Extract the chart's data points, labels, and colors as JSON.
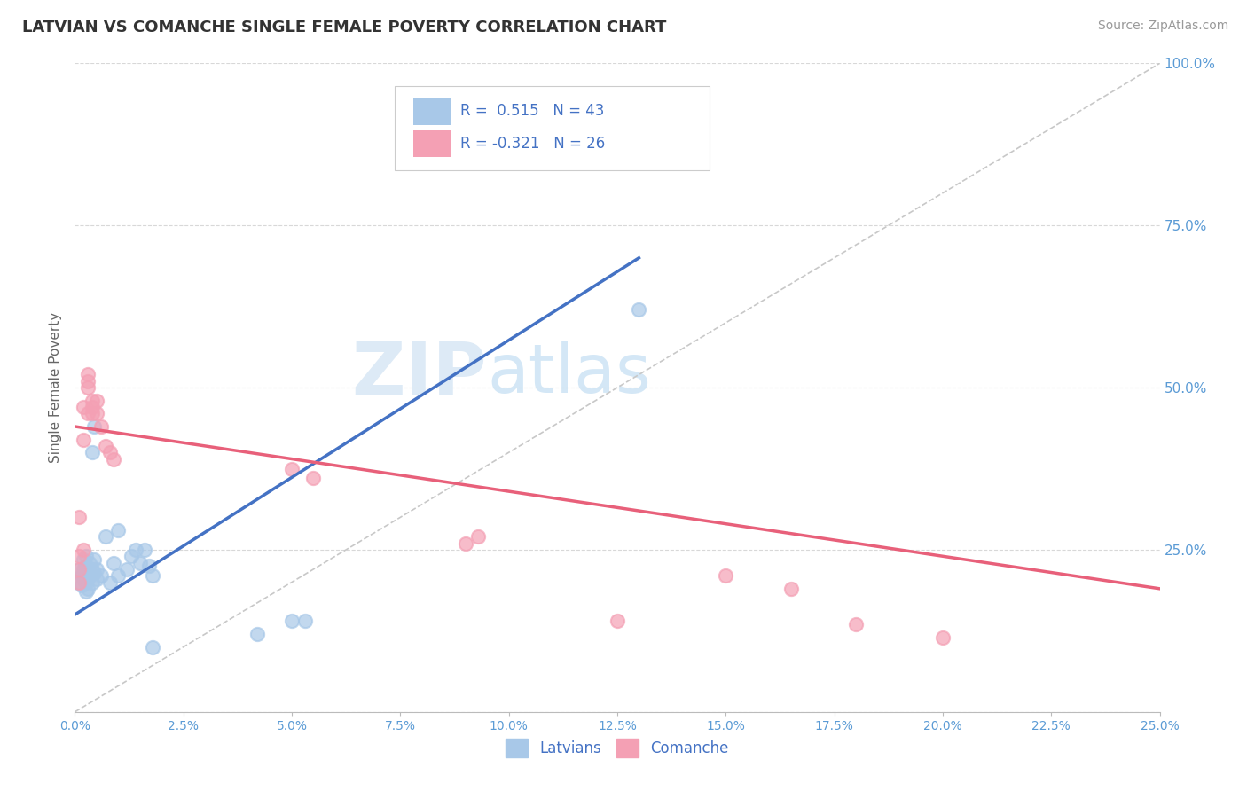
{
  "title": "LATVIAN VS COMANCHE SINGLE FEMALE POVERTY CORRELATION CHART",
  "source": "Source: ZipAtlas.com",
  "ylabel": "Single Female Poverty",
  "latvian_color": "#a8c8e8",
  "comanche_color": "#f4a0b4",
  "blue_line_color": "#4472c4",
  "pink_line_color": "#e8607a",
  "ref_line_color": "#c8c8c8",
  "watermark_zip": "ZIP",
  "watermark_atlas": "atlas",
  "background_color": "#ffffff",
  "grid_color": "#d8d8d8",
  "latvian_dots": [
    [
      0.1,
      20.0
    ],
    [
      0.1,
      22.0
    ],
    [
      0.15,
      19.5
    ],
    [
      0.15,
      21.0
    ],
    [
      0.2,
      20.5
    ],
    [
      0.2,
      22.0
    ],
    [
      0.2,
      23.5
    ],
    [
      0.25,
      18.5
    ],
    [
      0.25,
      20.0
    ],
    [
      0.25,
      21.0
    ],
    [
      0.25,
      22.5
    ],
    [
      0.25,
      24.0
    ],
    [
      0.3,
      19.0
    ],
    [
      0.3,
      20.5
    ],
    [
      0.3,
      22.0
    ],
    [
      0.35,
      21.5
    ],
    [
      0.35,
      23.0
    ],
    [
      0.4,
      20.0
    ],
    [
      0.4,
      22.0
    ],
    [
      0.4,
      40.0
    ],
    [
      0.45,
      21.5
    ],
    [
      0.45,
      23.5
    ],
    [
      0.45,
      44.0
    ],
    [
      0.5,
      20.5
    ],
    [
      0.5,
      22.0
    ],
    [
      0.6,
      21.0
    ],
    [
      0.7,
      27.0
    ],
    [
      0.8,
      20.0
    ],
    [
      0.9,
      23.0
    ],
    [
      1.0,
      21.0
    ],
    [
      1.0,
      28.0
    ],
    [
      1.2,
      22.0
    ],
    [
      1.3,
      24.0
    ],
    [
      1.4,
      25.0
    ],
    [
      1.5,
      23.0
    ],
    [
      1.6,
      25.0
    ],
    [
      1.7,
      22.5
    ],
    [
      1.8,
      21.0
    ],
    [
      1.8,
      10.0
    ],
    [
      4.2,
      12.0
    ],
    [
      5.0,
      14.0
    ],
    [
      5.3,
      14.0
    ],
    [
      13.0,
      62.0
    ]
  ],
  "comanche_dots": [
    [
      0.1,
      20.0
    ],
    [
      0.1,
      22.0
    ],
    [
      0.1,
      24.0
    ],
    [
      0.1,
      30.0
    ],
    [
      0.2,
      25.0
    ],
    [
      0.2,
      42.0
    ],
    [
      0.2,
      47.0
    ],
    [
      0.3,
      46.0
    ],
    [
      0.3,
      50.0
    ],
    [
      0.3,
      51.0
    ],
    [
      0.3,
      52.0
    ],
    [
      0.4,
      46.0
    ],
    [
      0.4,
      47.0
    ],
    [
      0.4,
      48.0
    ],
    [
      0.5,
      46.0
    ],
    [
      0.5,
      48.0
    ],
    [
      0.6,
      44.0
    ],
    [
      0.7,
      41.0
    ],
    [
      0.8,
      40.0
    ],
    [
      0.9,
      39.0
    ],
    [
      5.0,
      37.5
    ],
    [
      5.5,
      36.0
    ],
    [
      9.0,
      26.0
    ],
    [
      9.3,
      27.0
    ],
    [
      12.5,
      14.0
    ],
    [
      15.0,
      21.0
    ],
    [
      16.5,
      19.0
    ],
    [
      18.0,
      13.5
    ],
    [
      20.0,
      11.5
    ]
  ],
  "blue_line": [
    [
      0.0,
      15.0
    ],
    [
      13.0,
      70.0
    ]
  ],
  "pink_line": [
    [
      0.0,
      44.0
    ],
    [
      25.0,
      19.0
    ]
  ],
  "ref_line": [
    [
      0.0,
      0.0
    ],
    [
      25.0,
      100.0
    ]
  ],
  "xlim": [
    0.0,
    25.0
  ],
  "ylim": [
    0.0,
    100.0
  ],
  "xticks": [
    0.0,
    2.5,
    5.0,
    7.5,
    10.0,
    12.5,
    15.0,
    17.5,
    20.0,
    22.5,
    25.0
  ],
  "yticks": [
    0,
    25,
    50,
    75,
    100
  ],
  "ytick_labels": [
    "",
    "25.0%",
    "50.0%",
    "75.0%",
    "100.0%"
  ]
}
